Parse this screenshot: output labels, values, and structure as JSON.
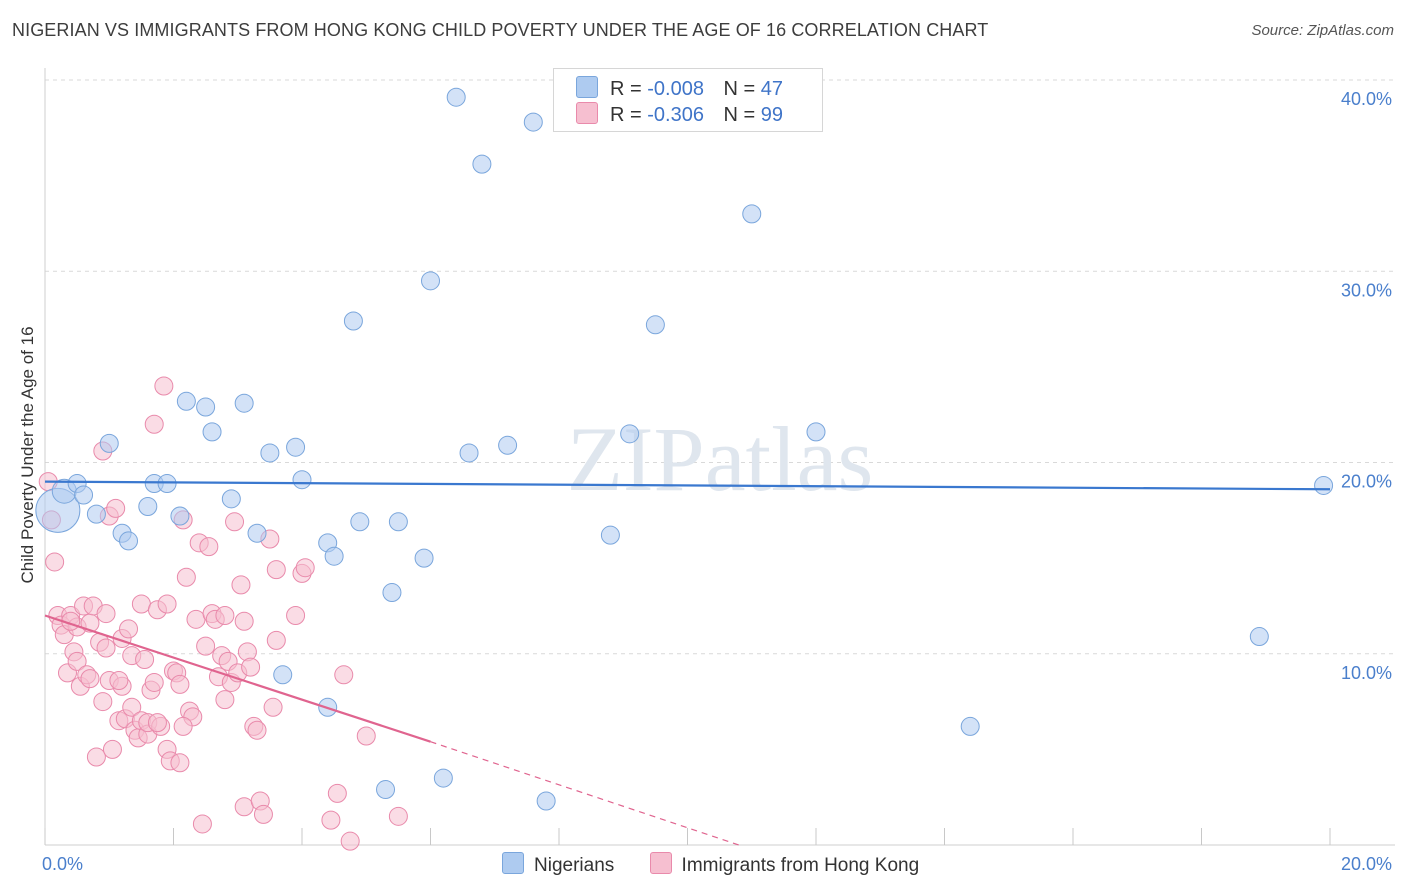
{
  "title": "NIGERIAN VS IMMIGRANTS FROM HONG KONG CHILD POVERTY UNDER THE AGE OF 16 CORRELATION CHART",
  "source": "Source: ZipAtlas.com",
  "watermark": "ZIPatlas",
  "legend": {
    "r_label": "R =",
    "n_label": "N =",
    "rows": [
      {
        "r": "-0.008",
        "n": "47"
      },
      {
        "r": "-0.306",
        "n": "99"
      }
    ]
  },
  "colors": {
    "blue_fill": "#aecbf0",
    "blue_stroke": "#7aa6dc",
    "blue_line": "#3a78cf",
    "pink_fill": "#f6bfd0",
    "pink_stroke": "#e98aab",
    "pink_line": "#e0648f",
    "tick_text": "#4a7fcc",
    "grid": "#d9d9d9"
  },
  "chart_data": {
    "type": "scatter",
    "title": "NIGERIAN VS IMMIGRANTS FROM HONG KONG CHILD POVERTY UNDER THE AGE OF 16 CORRELATION CHART",
    "ylabel": "Child Poverty Under the Age of 16",
    "xlabel": "",
    "xlim": [
      0,
      20
    ],
    "ylim": [
      0,
      40
    ],
    "x_tick_labels": [
      "0.0%",
      "20.0%"
    ],
    "y_tick_labels": [
      "10.0%",
      "20.0%",
      "30.0%",
      "40.0%"
    ],
    "grid": true,
    "legend_position": "bottom",
    "series": [
      {
        "name": "Nigerians",
        "r": -0.008,
        "n": 47,
        "trend": {
          "x": [
            0,
            20
          ],
          "y": [
            19.0,
            18.6
          ],
          "style": "solid"
        },
        "points": [
          [
            0.2,
            17.5
          ],
          [
            0.3,
            18.5
          ],
          [
            0.5,
            18.9
          ],
          [
            0.6,
            18.3
          ],
          [
            0.8,
            17.3
          ],
          [
            1.0,
            21.0
          ],
          [
            1.2,
            16.3
          ],
          [
            1.3,
            15.9
          ],
          [
            1.6,
            17.7
          ],
          [
            1.7,
            18.9
          ],
          [
            1.9,
            18.9
          ],
          [
            2.1,
            17.2
          ],
          [
            2.2,
            23.2
          ],
          [
            2.5,
            22.9
          ],
          [
            2.6,
            21.6
          ],
          [
            2.9,
            18.1
          ],
          [
            3.1,
            23.1
          ],
          [
            3.3,
            16.3
          ],
          [
            3.5,
            20.5
          ],
          [
            3.7,
            8.9
          ],
          [
            3.9,
            20.8
          ],
          [
            4.0,
            19.1
          ],
          [
            4.4,
            15.8
          ],
          [
            4.5,
            15.1
          ],
          [
            4.4,
            7.2
          ],
          [
            4.8,
            27.4
          ],
          [
            4.9,
            16.9
          ],
          [
            5.4,
            13.2
          ],
          [
            5.5,
            16.9
          ],
          [
            5.3,
            2.9
          ],
          [
            5.9,
            15.0
          ],
          [
            6.0,
            29.5
          ],
          [
            6.2,
            3.5
          ],
          [
            6.4,
            39.1
          ],
          [
            6.6,
            20.5
          ],
          [
            6.8,
            35.6
          ],
          [
            7.2,
            20.9
          ],
          [
            7.6,
            37.8
          ],
          [
            7.8,
            2.3
          ],
          [
            8.8,
            16.2
          ],
          [
            9.1,
            21.5
          ],
          [
            9.5,
            27.2
          ],
          [
            11.0,
            33.0
          ],
          [
            12.0,
            21.6
          ],
          [
            14.4,
            6.2
          ],
          [
            18.9,
            10.9
          ],
          [
            19.9,
            18.8
          ]
        ]
      },
      {
        "name": "Immigrants from Hong Kong",
        "r": -0.306,
        "n": 99,
        "trend": {
          "x": [
            0,
            6.0
          ],
          "y": [
            12.0,
            5.4
          ],
          "style": "solid",
          "extension": {
            "x": [
              6.0,
              10.8
            ],
            "y": [
              5.4,
              0.0
            ],
            "style": "dashed"
          }
        },
        "points": [
          [
            0.05,
            19.0
          ],
          [
            0.1,
            17.0
          ],
          [
            0.15,
            14.8
          ],
          [
            0.2,
            12.0
          ],
          [
            0.25,
            11.5
          ],
          [
            0.3,
            11.0
          ],
          [
            0.35,
            9.0
          ],
          [
            0.4,
            12.0
          ],
          [
            0.45,
            10.1
          ],
          [
            0.5,
            9.6
          ],
          [
            0.5,
            11.4
          ],
          [
            0.55,
            8.3
          ],
          [
            0.6,
            12.5
          ],
          [
            0.65,
            8.9
          ],
          [
            0.7,
            11.6
          ],
          [
            0.75,
            12.5
          ],
          [
            0.8,
            4.6
          ],
          [
            0.85,
            10.6
          ],
          [
            0.9,
            7.5
          ],
          [
            0.9,
            20.6
          ],
          [
            0.95,
            10.3
          ],
          [
            1.0,
            8.6
          ],
          [
            1.0,
            17.2
          ],
          [
            1.05,
            5.0
          ],
          [
            1.1,
            17.6
          ],
          [
            1.15,
            6.5
          ],
          [
            1.2,
            10.8
          ],
          [
            1.2,
            8.3
          ],
          [
            1.25,
            6.6
          ],
          [
            1.3,
            11.3
          ],
          [
            1.35,
            7.2
          ],
          [
            1.35,
            9.9
          ],
          [
            1.4,
            6.0
          ],
          [
            1.45,
            5.6
          ],
          [
            1.5,
            6.5
          ],
          [
            1.5,
            12.6
          ],
          [
            1.55,
            9.7
          ],
          [
            1.6,
            5.8
          ],
          [
            1.6,
            6.4
          ],
          [
            1.65,
            8.1
          ],
          [
            1.7,
            8.5
          ],
          [
            1.7,
            22.0
          ],
          [
            1.75,
            12.3
          ],
          [
            1.8,
            6.2
          ],
          [
            1.85,
            24.0
          ],
          [
            1.9,
            12.6
          ],
          [
            1.9,
            5.0
          ],
          [
            1.95,
            4.4
          ],
          [
            2.0,
            9.1
          ],
          [
            2.05,
            9.0
          ],
          [
            2.1,
            8.4
          ],
          [
            2.1,
            4.3
          ],
          [
            2.15,
            17.0
          ],
          [
            2.2,
            14.0
          ],
          [
            2.25,
            7.0
          ],
          [
            2.3,
            6.7
          ],
          [
            2.35,
            11.8
          ],
          [
            2.4,
            15.8
          ],
          [
            2.45,
            1.1
          ],
          [
            2.5,
            10.4
          ],
          [
            2.55,
            15.6
          ],
          [
            2.6,
            12.1
          ],
          [
            2.65,
            11.8
          ],
          [
            2.7,
            8.8
          ],
          [
            2.75,
            9.9
          ],
          [
            2.8,
            7.6
          ],
          [
            2.85,
            9.6
          ],
          [
            2.9,
            8.5
          ],
          [
            2.95,
            16.9
          ],
          [
            3.0,
            9.0
          ],
          [
            3.05,
            13.6
          ],
          [
            3.1,
            2.0
          ],
          [
            3.1,
            11.7
          ],
          [
            3.15,
            10.1
          ],
          [
            3.25,
            6.2
          ],
          [
            3.3,
            6.0
          ],
          [
            3.35,
            2.3
          ],
          [
            3.4,
            1.6
          ],
          [
            3.5,
            16.0
          ],
          [
            3.55,
            7.2
          ],
          [
            3.6,
            14.4
          ],
          [
            3.6,
            10.7
          ],
          [
            3.9,
            12.0
          ],
          [
            4.0,
            14.2
          ],
          [
            4.05,
            14.5
          ],
          [
            4.45,
            1.3
          ],
          [
            4.55,
            2.7
          ],
          [
            4.65,
            8.9
          ],
          [
            4.75,
            0.2
          ],
          [
            5.0,
            5.7
          ],
          [
            5.5,
            1.5
          ],
          [
            0.7,
            8.7
          ],
          [
            1.15,
            8.6
          ],
          [
            0.4,
            11.7
          ],
          [
            2.8,
            12.0
          ],
          [
            3.2,
            9.3
          ],
          [
            1.75,
            6.4
          ],
          [
            0.95,
            12.1
          ],
          [
            2.15,
            6.2
          ]
        ]
      }
    ]
  }
}
